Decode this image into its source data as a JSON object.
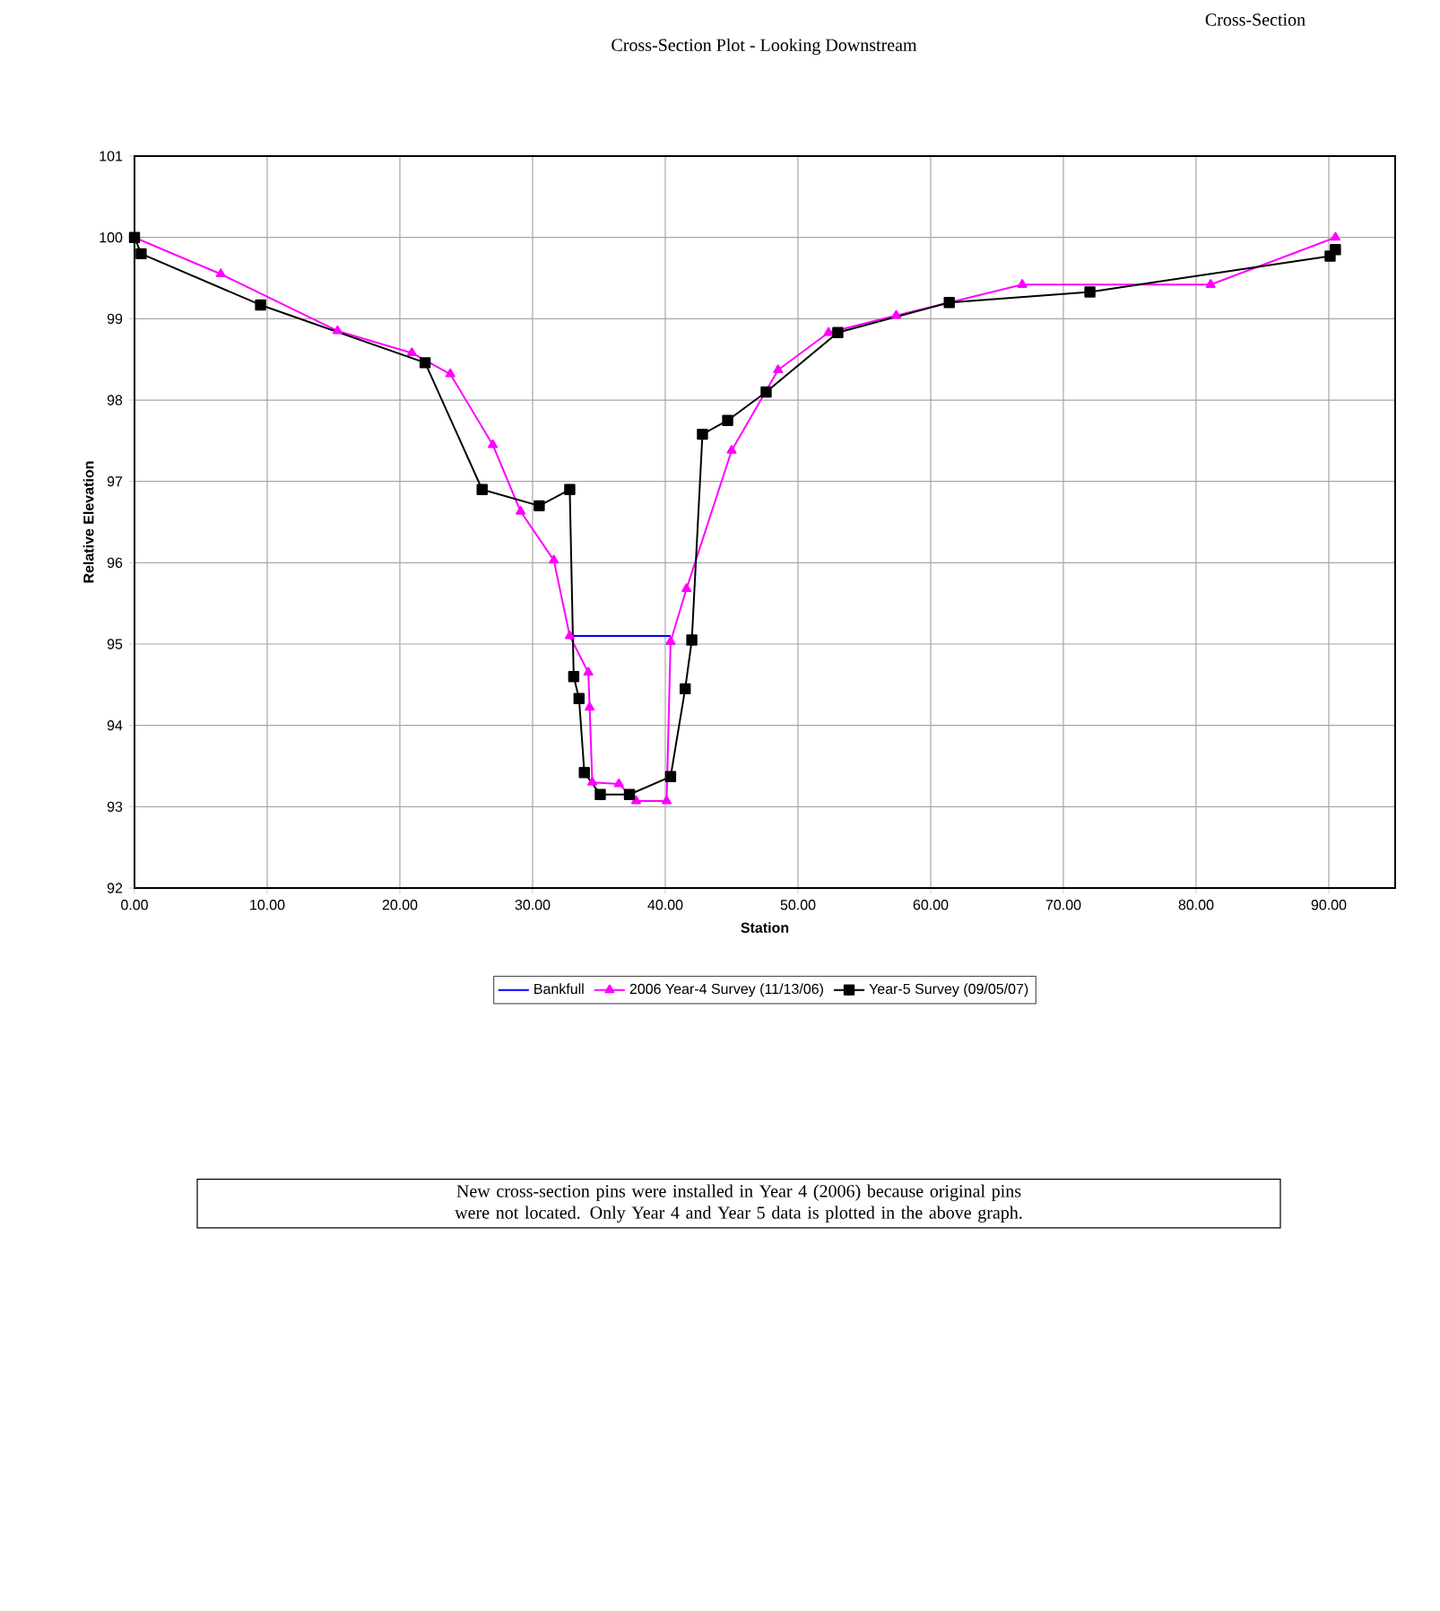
{
  "chart_data": {
    "type": "line",
    "title": "Cross-Section",
    "subtitle": "Cross-Section Plot - Looking Downstream",
    "xlabel": "Station",
    "ylabel": "Relative Elevation",
    "xlim": [
      0,
      95
    ],
    "ylim": [
      92,
      101
    ],
    "xticks": [
      {
        "value": 0,
        "label": "0.00"
      },
      {
        "value": 10,
        "label": "10.00"
      },
      {
        "value": 20,
        "label": "20.00"
      },
      {
        "value": 30,
        "label": "30.00"
      },
      {
        "value": 40,
        "label": "40.00"
      },
      {
        "value": 50,
        "label": "50.00"
      },
      {
        "value": 60,
        "label": "60.00"
      },
      {
        "value": 70,
        "label": "70.00"
      },
      {
        "value": 80,
        "label": "80.00"
      },
      {
        "value": 90,
        "label": "90.00"
      }
    ],
    "yticks": [
      92,
      93,
      94,
      95,
      96,
      97,
      98,
      99,
      100,
      101
    ],
    "grid": true,
    "legend": "bottom",
    "line_style": "solid",
    "series": [
      {
        "name": "Bankfull",
        "color": "#0000ff",
        "marker": "none",
        "x": [
          32.8,
          40.4
        ],
        "values": [
          95.1,
          95.1
        ]
      },
      {
        "name": "2006 Year-4 Survey (11/13/06)",
        "color": "#ff00ff",
        "marker": "triangle",
        "x": [
          0,
          6.5,
          15.3,
          20.9,
          23.8,
          27.0,
          29.1,
          31.6,
          32.8,
          34.2,
          34.3,
          34.5,
          36.5,
          37.8,
          40.1,
          40.4,
          41.6,
          45.0,
          48.5,
          52.3,
          57.4,
          66.9,
          81.1,
          90.5
        ],
        "values": [
          100.0,
          99.55,
          98.85,
          98.58,
          98.32,
          97.45,
          96.63,
          96.03,
          95.1,
          94.65,
          94.22,
          93.3,
          93.28,
          93.07,
          93.07,
          95.03,
          95.68,
          97.38,
          98.37,
          98.83,
          99.04,
          99.42,
          99.42,
          100.0
        ]
      },
      {
        "name": "Year-5 Survey (09/05/07)",
        "color": "#000000",
        "marker": "square",
        "x": [
          0,
          0.5,
          9.5,
          21.9,
          26.2,
          30.5,
          32.8,
          33.1,
          33.5,
          33.9,
          35.1,
          37.3,
          40.4,
          41.5,
          42.0,
          42.8,
          44.7,
          47.6,
          53.0,
          61.4,
          72.0,
          90.1,
          90.5
        ],
        "values": [
          100.0,
          99.8,
          99.17,
          98.46,
          96.9,
          96.7,
          96.9,
          94.6,
          94.33,
          93.42,
          93.15,
          93.15,
          93.37,
          94.45,
          95.05,
          97.58,
          97.75,
          98.1,
          98.83,
          99.2,
          99.33,
          99.77,
          99.85
        ]
      }
    ],
    "annotations": [
      "New cross-section pins were installed in Year 4 (2006) because original pins were not located. Only Year 4 and Year 5 data is plotted in the above graph."
    ]
  }
}
